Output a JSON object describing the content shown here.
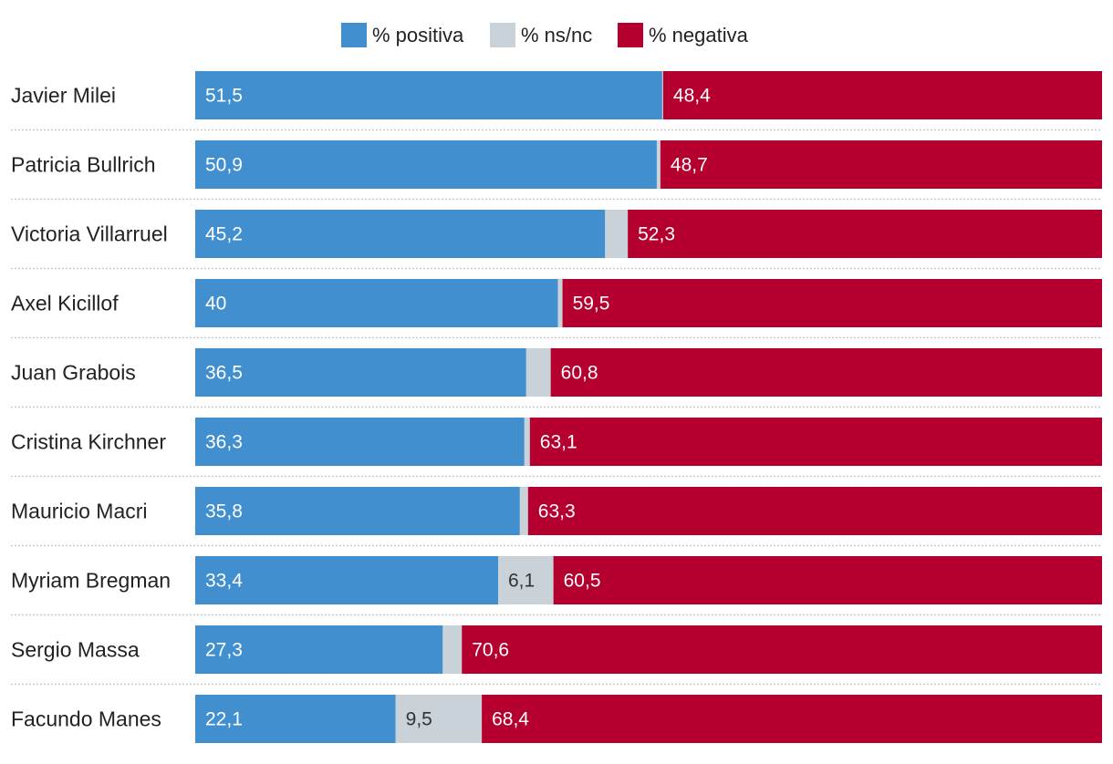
{
  "chart_data": {
    "type": "bar",
    "orientation": "horizontal",
    "stacked": true,
    "title": "",
    "xlabel": "",
    "ylabel": "",
    "xlim": [
      0,
      100
    ],
    "grid": false,
    "legend_position": "top-center",
    "categories": [
      "Javier Milei",
      "Patricia Bullrich",
      "Victoria Villarruel",
      "Axel Kicillof",
      "Juan Grabois",
      "Cristina Kirchner",
      "Mauricio Macri",
      "Myriam Bregman",
      "Sergio Massa",
      "Facundo Manes"
    ],
    "series": [
      {
        "name": "% positiva",
        "color": "#418fce",
        "label_color": "#ffffff",
        "values": [
          51.5,
          50.9,
          45.2,
          40,
          36.5,
          36.3,
          35.8,
          33.4,
          27.3,
          22.1
        ],
        "labels": [
          "51,5",
          "50,9",
          "45,2",
          "40",
          "36,5",
          "36,3",
          "35,8",
          "33,4",
          "27,3",
          "22,1"
        ]
      },
      {
        "name": "% ns/nc",
        "color": "#c9d2d9",
        "label_color": "#333333",
        "values": [
          0.1,
          0.4,
          2.5,
          0.5,
          2.7,
          0.6,
          0.9,
          6.1,
          2.1,
          9.5
        ],
        "labels": [
          "",
          "",
          "",
          "",
          "",
          "",
          "",
          "6,1",
          "",
          "9,5"
        ]
      },
      {
        "name": "% negativa",
        "color": "#b5002f",
        "label_color": "#ffffff",
        "values": [
          48.4,
          48.7,
          52.3,
          59.5,
          60.8,
          63.1,
          63.3,
          60.5,
          70.6,
          68.4
        ],
        "labels": [
          "48,4",
          "48,7",
          "52,3",
          "59,5",
          "60,8",
          "63,1",
          "63,3",
          "60,5",
          "70,6",
          "68,4"
        ]
      }
    ]
  }
}
